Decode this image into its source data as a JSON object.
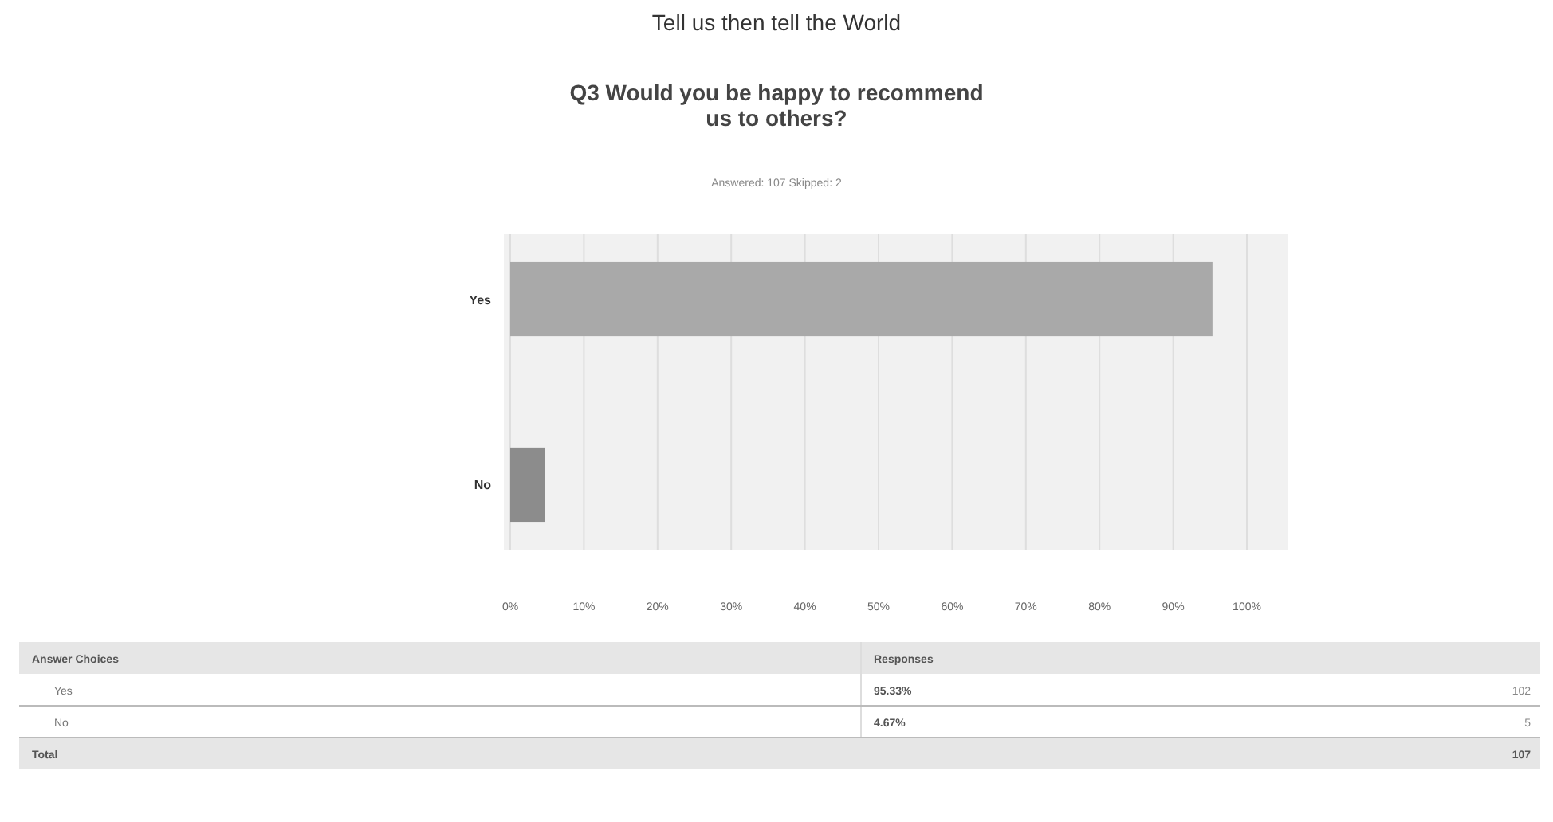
{
  "chart_data": {
    "type": "bar",
    "orientation": "horizontal",
    "title": "Tell us then tell the World",
    "subtitle": "Q3 Would you be happy to recommend us to others?",
    "categories": [
      "Yes",
      "No"
    ],
    "values": [
      95.33,
      4.67
    ],
    "colors": [
      "#a9a9a9",
      "#8c8c8c"
    ],
    "xlim": [
      0,
      100
    ],
    "xticks": [
      {
        "value": 0,
        "label": "0%"
      },
      {
        "value": 10,
        "label": "10%"
      },
      {
        "value": 20,
        "label": "20%"
      },
      {
        "value": 30,
        "label": "30%"
      },
      {
        "value": 40,
        "label": "40%"
      },
      {
        "value": 50,
        "label": "50%"
      },
      {
        "value": 60,
        "label": "60%"
      },
      {
        "value": 70,
        "label": "70%"
      },
      {
        "value": 80,
        "label": "80%"
      },
      {
        "value": 90,
        "label": "90%"
      },
      {
        "value": 100,
        "label": "100%"
      }
    ],
    "grid": "x",
    "annotations": [
      "Answered: 107   Skipped: 2",
      "Answer Choices",
      "Responses",
      "95.33%",
      "102",
      "4.67%",
      "5",
      "Total",
      "107"
    ]
  }
}
